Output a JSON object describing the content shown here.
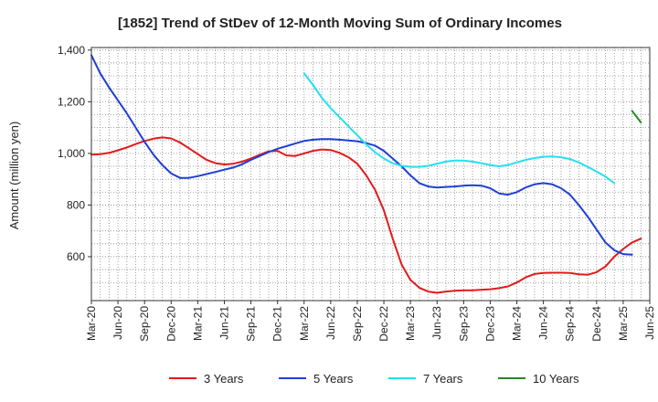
{
  "chart_data": {
    "type": "line",
    "title": "[1852]  Trend of StDev of 12-Month Moving Sum of Ordinary Incomes",
    "xlabel": "",
    "ylabel": "Amount (million yen)",
    "ylim": [
      430,
      1410
    ],
    "yticks": [
      600,
      800,
      1000,
      1200,
      1400
    ],
    "ytick_labels": [
      "600",
      "800",
      "1,000",
      "1,200",
      "1,400"
    ],
    "x_tick_labels": [
      "Mar-20",
      "Jun-20",
      "Sep-20",
      "Dec-20",
      "Mar-21",
      "Jun-21",
      "Sep-21",
      "Dec-21",
      "Mar-22",
      "Jun-22",
      "Sep-22",
      "Dec-22",
      "Mar-23",
      "Jun-23",
      "Sep-23",
      "Dec-23",
      "Mar-24",
      "Jun-24",
      "Sep-24",
      "Dec-24",
      "Mar-25",
      "Jun-25"
    ],
    "x_range_months": [
      0,
      63
    ],
    "grid": true,
    "legend_position": "bottom",
    "series": [
      {
        "name": "3 Years",
        "color": "#e31a1c",
        "start_month": 0,
        "values": [
          995,
          997,
          1002,
          1012,
          1023,
          1036,
          1048,
          1057,
          1062,
          1058,
          1042,
          1020,
          997,
          975,
          962,
          957,
          960,
          968,
          980,
          995,
          1008,
          1010,
          992,
          990,
          1000,
          1010,
          1015,
          1013,
          1002,
          985,
          960,
          915,
          860,
          780,
          670,
          570,
          510,
          480,
          465,
          460,
          465,
          468,
          470,
          470,
          472,
          474,
          478,
          485,
          500,
          520,
          533,
          537,
          538,
          538,
          537,
          532,
          530,
          540,
          562,
          600,
          630,
          655,
          670
        ]
      },
      {
        "name": "5 Years",
        "color": "#1f3fd6",
        "start_month": 0,
        "values": [
          1380,
          1310,
          1255,
          1205,
          1155,
          1100,
          1045,
          995,
          955,
          922,
          905,
          905,
          912,
          920,
          928,
          937,
          945,
          958,
          975,
          990,
          1005,
          1018,
          1028,
          1038,
          1048,
          1053,
          1055,
          1055,
          1053,
          1050,
          1047,
          1040,
          1030,
          1010,
          980,
          950,
          915,
          885,
          872,
          868,
          870,
          872,
          875,
          877,
          875,
          865,
          845,
          840,
          850,
          868,
          880,
          885,
          880,
          865,
          840,
          800,
          755,
          705,
          655,
          625,
          610,
          608
        ]
      },
      {
        "name": "7 Years",
        "color": "#22e0f0",
        "start_month": 24,
        "values": [
          1310,
          1265,
          1215,
          1175,
          1140,
          1105,
          1070,
          1035,
          1005,
          980,
          962,
          952,
          948,
          948,
          952,
          960,
          968,
          972,
          972,
          968,
          962,
          955,
          950,
          955,
          965,
          975,
          982,
          987,
          988,
          985,
          978,
          965,
          948,
          930,
          910,
          885
        ]
      },
      {
        "name": "10 Years",
        "color": "#228b22",
        "start_month": 61,
        "values": [
          1165,
          1120
        ]
      }
    ]
  }
}
